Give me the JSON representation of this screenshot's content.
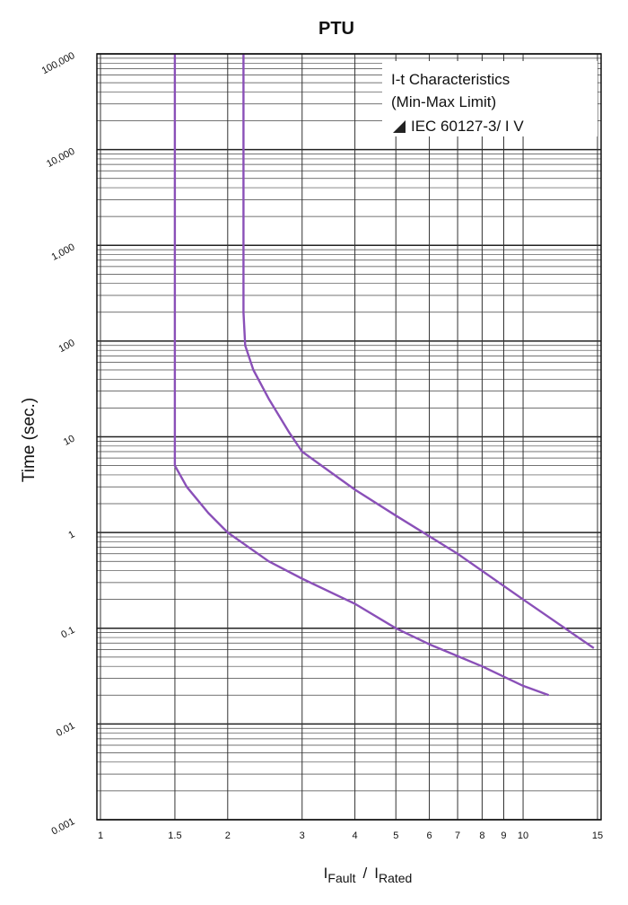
{
  "chart_data": {
    "type": "line",
    "title": "PTU",
    "ylabel": "Time (sec.)",
    "xlabel": [
      "I",
      "Fault",
      "/",
      "I",
      "Rated"
    ],
    "annotation": [
      "I-t Characteristics",
      "(Min-Max Limit)",
      "IEC 60127-3/ I V"
    ],
    "xscale": "log",
    "yscale": "log",
    "grid": true,
    "xlim": [
      1,
      15
    ],
    "ylim": [
      0.001,
      100000
    ],
    "xticks": [
      1,
      1.5,
      2,
      3,
      4,
      5,
      6,
      7,
      8,
      9,
      10,
      15
    ],
    "yticks": [
      0.001,
      0.01,
      0.1,
      1,
      10,
      100,
      {
        "value": 1000,
        "label": "1,000"
      },
      {
        "value": 10000,
        "label": "10,000"
      },
      {
        "value": 100000,
        "label": "100,000"
      }
    ],
    "series": [
      {
        "color": "#8a50b8",
        "x": [
          1.5,
          1.5,
          1.6,
          1.8,
          2,
          2.5,
          3,
          4,
          5,
          6,
          8,
          10,
          11.5
        ],
        "values": [
          100000,
          5,
          3,
          1.6,
          1,
          0.5,
          0.33,
          0.18,
          0.1,
          0.068,
          0.04,
          0.025,
          0.02
        ]
      },
      {
        "color": "#8a50b8",
        "x": [
          2.18,
          2.18,
          2.2,
          2.3,
          2.5,
          2.8,
          3,
          4,
          5,
          7,
          10,
          14.7
        ],
        "values": [
          100000,
          200,
          90,
          50,
          25,
          11,
          7,
          2.8,
          1.5,
          0.6,
          0.2,
          0.062
        ]
      }
    ]
  }
}
